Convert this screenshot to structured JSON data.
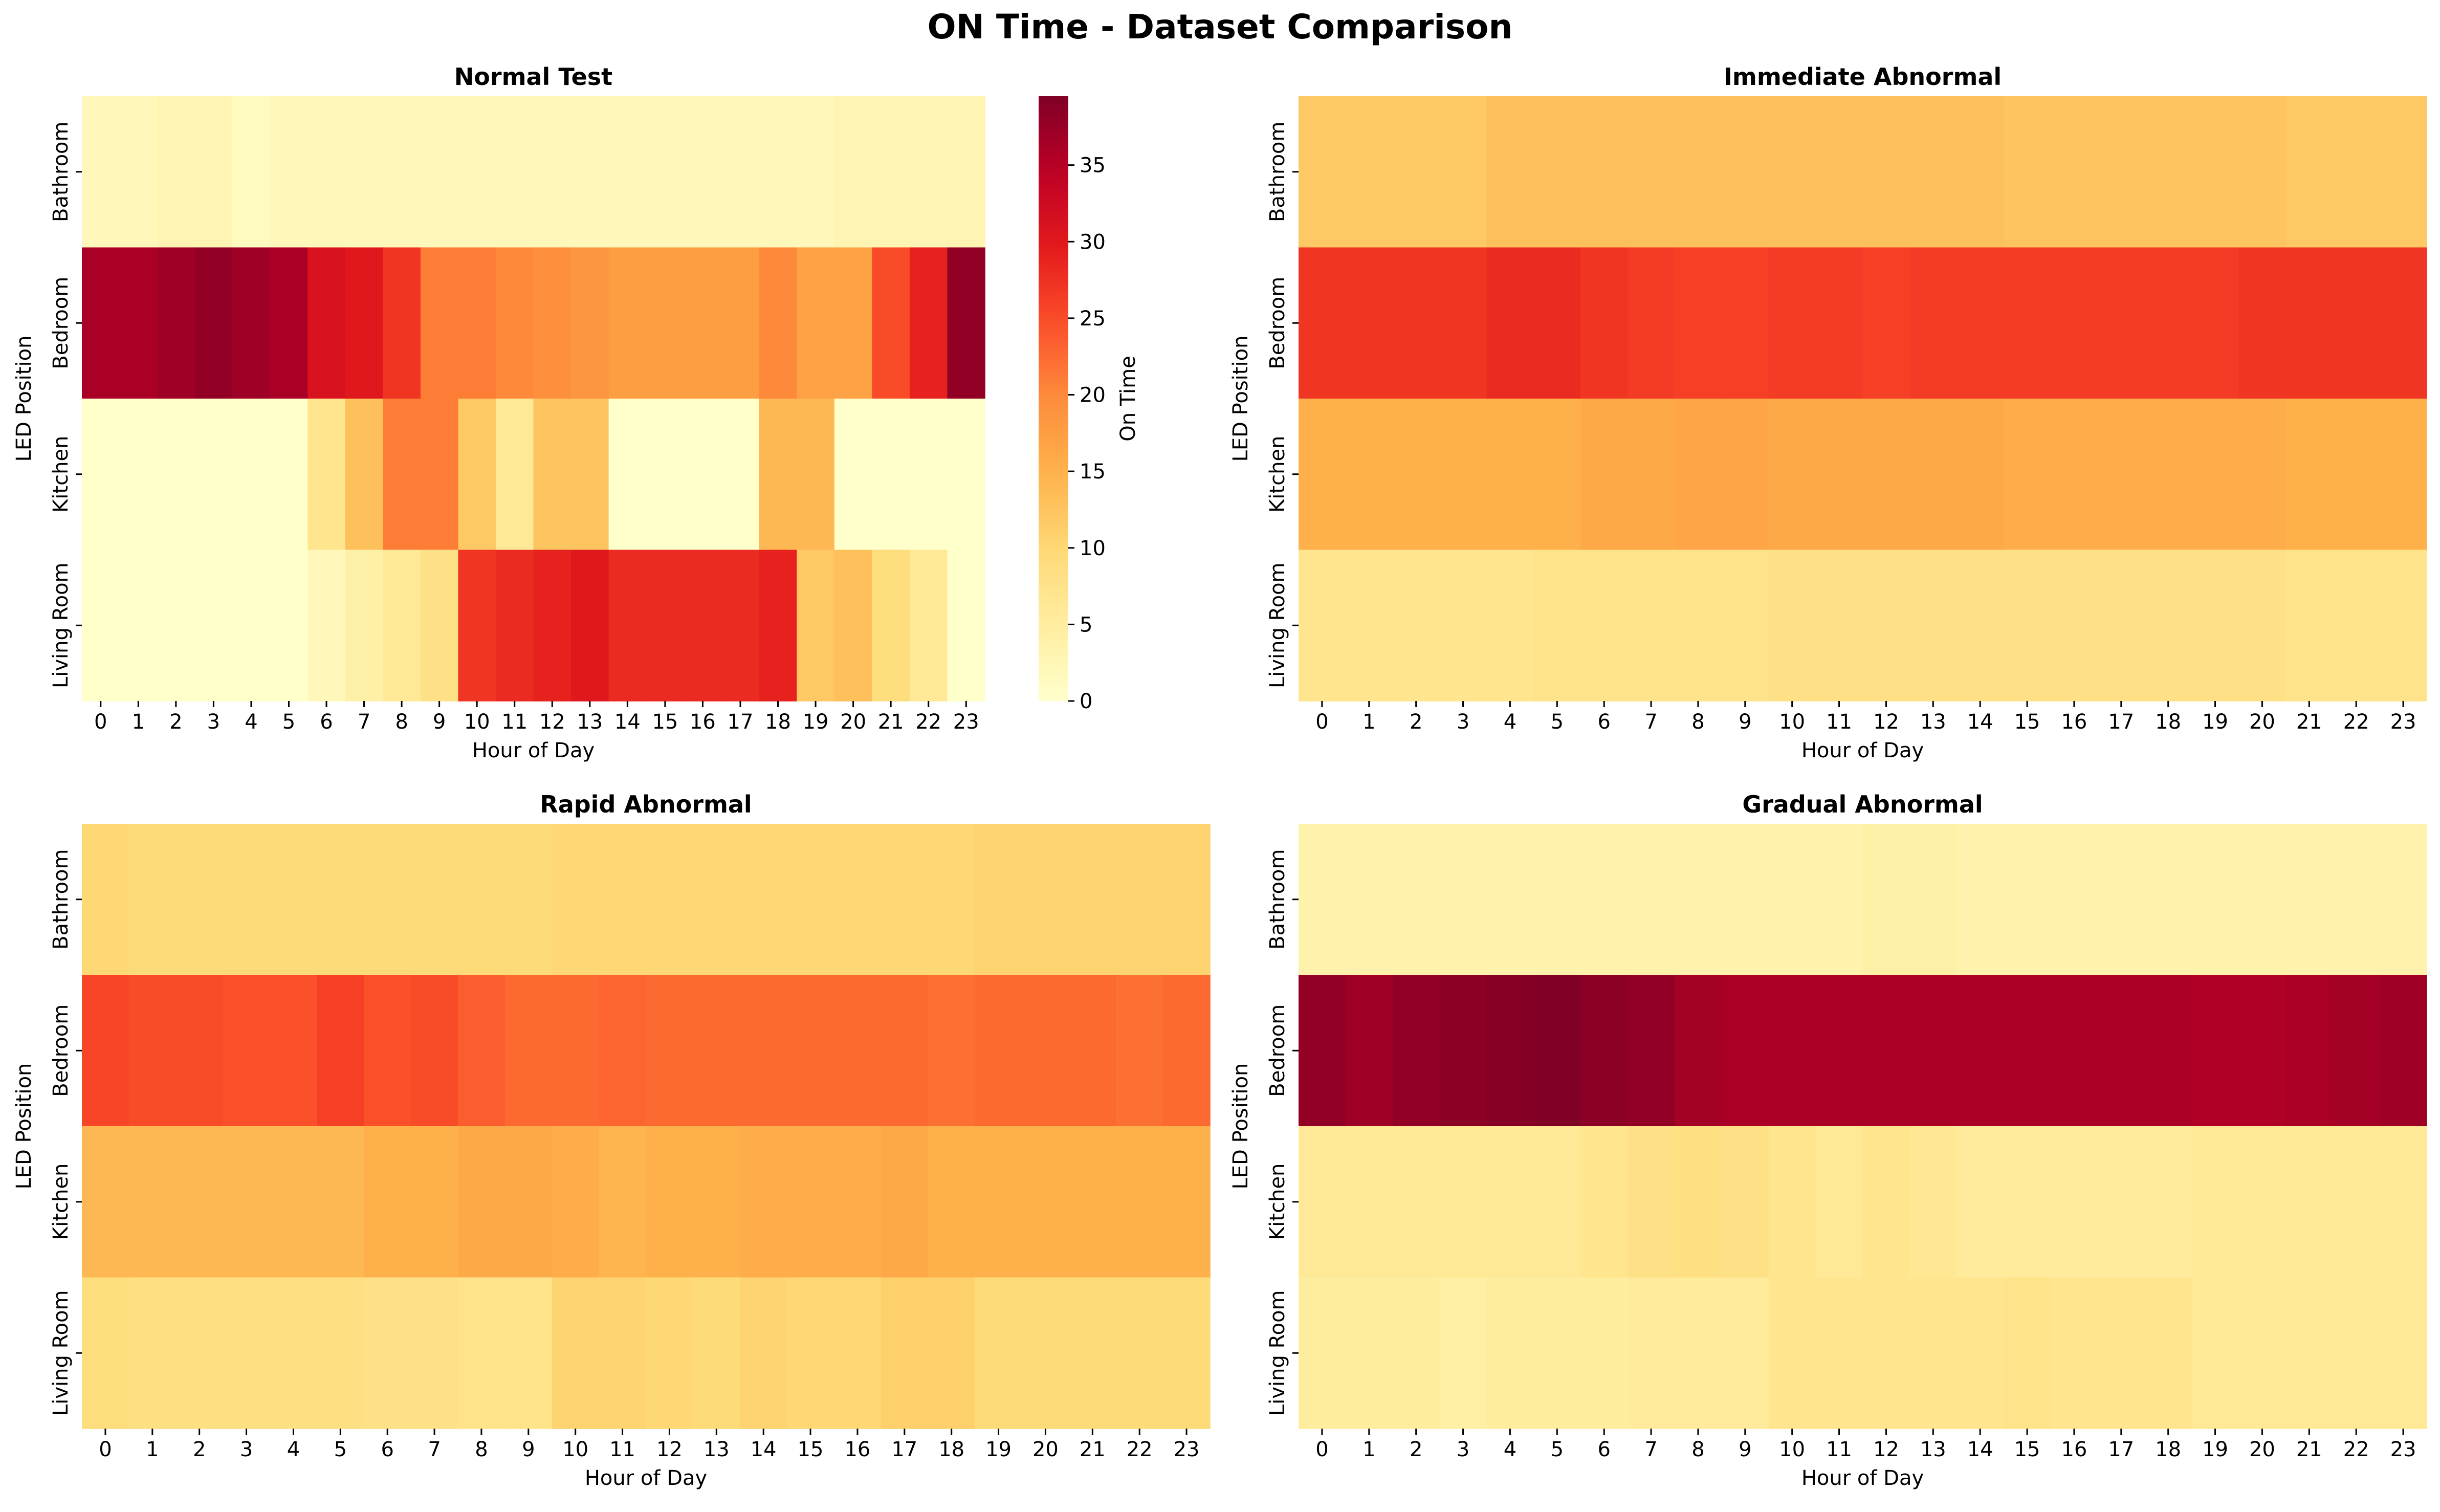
{
  "figure": {
    "title": "ON Time - Dataset Comparison",
    "colormap": "YlOrRd",
    "colormap_stops": [
      "#ffffcc",
      "#ffeda0",
      "#fed976",
      "#feb24c",
      "#fd8d3c",
      "#fc4e2a",
      "#e31a1c",
      "#bd0026",
      "#800026"
    ]
  },
  "chart_data": [
    {
      "type": "heatmap",
      "title": "Normal Test",
      "xlabel": "Hour of Day",
      "ylabel": "LED Position",
      "x": [
        "0",
        "1",
        "2",
        "3",
        "4",
        "5",
        "6",
        "7",
        "8",
        "9",
        "10",
        "11",
        "12",
        "13",
        "14",
        "15",
        "16",
        "17",
        "18",
        "19",
        "20",
        "21",
        "22",
        "23"
      ],
      "y": [
        "Bathroom",
        "Bedroom",
        "Kitchen",
        "Living Room"
      ],
      "values": [
        [
          2,
          2,
          3,
          3,
          1.5,
          2,
          2,
          2,
          2,
          2,
          2,
          2,
          2,
          2,
          2,
          2,
          2,
          2,
          2,
          2,
          3,
          3,
          3,
          3
        ],
        [
          36,
          36,
          37,
          38,
          37,
          36,
          31,
          30,
          27,
          21,
          21,
          20,
          19.5,
          18.5,
          17.5,
          17.5,
          17.5,
          17.5,
          20,
          17,
          17,
          25,
          29,
          38
        ],
        [
          0,
          0,
          0,
          0,
          0,
          0,
          7,
          13,
          21,
          21,
          12,
          6,
          12.5,
          12.5,
          0,
          0,
          0,
          0,
          14,
          14,
          0,
          0,
          0,
          0
        ],
        [
          0,
          0,
          0,
          0,
          0,
          0,
          2,
          4,
          6,
          8,
          27,
          28,
          29,
          30,
          28,
          28,
          28,
          28,
          29,
          12,
          13,
          9,
          6,
          0
        ]
      ],
      "colorbar": {
        "label": "On Time",
        "ticks": [
          0,
          5,
          10,
          15,
          20,
          25,
          30,
          35
        ],
        "vmin": 0,
        "vmax": 39.5
      }
    },
    {
      "type": "heatmap",
      "title": "Immediate Abnormal",
      "xlabel": "Hour of Day",
      "ylabel": "LED Position",
      "x": [
        "0",
        "1",
        "2",
        "3",
        "4",
        "5",
        "6",
        "7",
        "8",
        "9",
        "10",
        "11",
        "12",
        "13",
        "14",
        "15",
        "16",
        "17",
        "18",
        "19",
        "20",
        "21",
        "22",
        "23"
      ],
      "y": [
        "Bathroom",
        "Bedroom",
        "Kitchen",
        "Living Room"
      ],
      "values": [
        [
          12,
          12,
          12,
          12,
          13,
          13,
          13,
          13,
          13,
          13,
          13,
          13,
          13,
          13,
          13,
          12.5,
          12.5,
          12.5,
          12.5,
          12.5,
          12.5,
          12,
          12,
          12
        ],
        [
          27,
          27,
          27,
          27,
          28,
          28,
          27,
          26.5,
          26,
          26,
          26.5,
          26.5,
          26,
          26.5,
          26.5,
          26.5,
          26.5,
          26.5,
          26.5,
          26.5,
          27,
          27,
          27,
          27
        ],
        [
          15,
          15,
          15,
          15,
          15,
          15,
          16,
          16,
          16.5,
          16.5,
          16,
          16,
          16,
          16,
          16,
          15.5,
          15.5,
          15.5,
          15.5,
          15.5,
          15.5,
          15,
          15,
          15
        ],
        [
          7,
          7,
          7,
          7,
          7,
          7.5,
          7.5,
          7.5,
          7.5,
          7.5,
          8,
          8,
          8,
          8,
          8,
          8,
          8,
          8,
          8,
          8,
          8,
          7.5,
          7.5,
          7.5
        ]
      ],
      "colorbar": {
        "vmin": 0,
        "vmax": 39.5
      }
    },
    {
      "type": "heatmap",
      "title": "Rapid Abnormal",
      "xlabel": "Hour of Day",
      "ylabel": "LED Position",
      "x": [
        "0",
        "1",
        "2",
        "3",
        "4",
        "5",
        "6",
        "7",
        "8",
        "9",
        "10",
        "11",
        "12",
        "13",
        "14",
        "15",
        "16",
        "17",
        "18",
        "19",
        "20",
        "21",
        "22",
        "23"
      ],
      "y": [
        "Bathroom",
        "Bedroom",
        "Kitchen",
        "Living Room"
      ],
      "values": [
        [
          10,
          9.5,
          9.5,
          9.5,
          9.5,
          9.5,
          9.5,
          9.5,
          9.5,
          9.5,
          10,
          10,
          10,
          10,
          10,
          10,
          10,
          10,
          10,
          10.5,
          10.5,
          10.5,
          10.5,
          10.5
        ],
        [
          25.5,
          25,
          25,
          24.5,
          24.5,
          26,
          24.5,
          25,
          23.5,
          22.5,
          22.5,
          23,
          22.5,
          22.5,
          22.5,
          22.5,
          22.5,
          22.5,
          22,
          22.5,
          22.5,
          22.5,
          22,
          22.5
        ],
        [
          14,
          14,
          14,
          14,
          14,
          14,
          15,
          15,
          16,
          16,
          15.5,
          14.5,
          15,
          15,
          15.5,
          15.5,
          15.5,
          16,
          15,
          15,
          15,
          15,
          15,
          15
        ],
        [
          9,
          8.5,
          8.5,
          8.5,
          8.5,
          8.5,
          8,
          8,
          7.5,
          7.5,
          10.5,
          10.5,
          10,
          9.5,
          10.5,
          10,
          10,
          11,
          11,
          9.5,
          9.5,
          9.5,
          9.5,
          9.5
        ]
      ],
      "colorbar": {
        "vmin": 0,
        "vmax": 39.5
      }
    },
    {
      "type": "heatmap",
      "title": "Gradual Abnormal",
      "xlabel": "Hour of Day",
      "ylabel": "LED Position",
      "x": [
        "0",
        "1",
        "2",
        "3",
        "4",
        "5",
        "6",
        "7",
        "8",
        "9",
        "10",
        "11",
        "12",
        "13",
        "14",
        "15",
        "16",
        "17",
        "18",
        "19",
        "20",
        "21",
        "22",
        "23"
      ],
      "y": [
        "Bathroom",
        "Bedroom",
        "Kitchen",
        "Living Room"
      ],
      "values": [
        [
          3.5,
          3.5,
          3.5,
          3.5,
          3.5,
          3.5,
          3.5,
          3.5,
          3.5,
          3.5,
          3.5,
          3.5,
          4,
          4,
          3.5,
          3.5,
          3.5,
          3.5,
          3.5,
          3.5,
          3.5,
          3.5,
          3.5,
          3.5
        ],
        [
          38,
          37,
          38,
          38.5,
          39,
          39.5,
          38.5,
          38,
          36.5,
          36,
          36,
          36,
          36,
          36,
          36,
          36,
          36,
          36,
          36,
          35.5,
          35.5,
          36,
          36.5,
          37
        ],
        [
          6,
          6,
          6,
          6,
          6,
          6,
          7,
          8,
          8.5,
          8,
          7,
          6,
          7,
          6.5,
          5.5,
          5.5,
          5.5,
          5.5,
          5.5,
          6,
          6,
          6,
          6,
          6
        ],
        [
          5,
          5,
          5,
          4.5,
          5,
          5,
          5,
          5.5,
          5.5,
          5.5,
          7,
          7,
          7,
          7,
          7,
          7.5,
          7,
          7,
          7,
          6,
          6,
          6,
          6,
          6
        ]
      ],
      "colorbar": {
        "vmin": 0,
        "vmax": 39.5
      }
    }
  ]
}
